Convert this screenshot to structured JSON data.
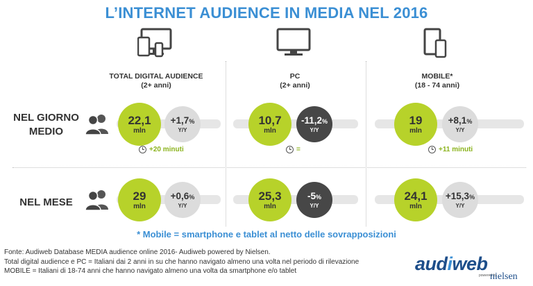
{
  "title": "L’INTERNET AUDIENCE IN MEDIA NEL 2016",
  "columns": [
    {
      "name": "TOTAL DIGITAL AUDIENCE",
      "sub": "(2+ anni)",
      "icon": "multi-device-icon"
    },
    {
      "name": "PC",
      "sub": "(2+ anni)",
      "icon": "monitor-icon"
    },
    {
      "name": "MOBILE*",
      "sub": "(18 - 74 anni)",
      "icon": "mobile-devices-icon"
    }
  ],
  "rows": [
    {
      "label_1": "NEL GIORNO",
      "label_2": "MEDIO",
      "cells": [
        {
          "value": "22,1",
          "unit": "mln",
          "change": "+1,7",
          "pct": "%",
          "yy": "Y/Y",
          "change_style": "grey",
          "time": "+20 minuti"
        },
        {
          "value": "10,7",
          "unit": "mln",
          "change": "-11,2",
          "pct": "%",
          "yy": "Y/Y",
          "change_style": "dark",
          "time": "="
        },
        {
          "value": "19",
          "unit": "mln",
          "change": "+8,1",
          "pct": "%",
          "yy": "Y/Y",
          "change_style": "grey",
          "time": "+11 minuti"
        }
      ]
    },
    {
      "label_1": "NEL MESE",
      "label_2": "",
      "cells": [
        {
          "value": "29",
          "unit": "mln",
          "change": "+0,6",
          "pct": "%",
          "yy": "Y/Y",
          "change_style": "grey"
        },
        {
          "value": "25,3",
          "unit": "mln",
          "change": "-5",
          "pct": "%",
          "yy": "Y/Y",
          "change_style": "dark"
        },
        {
          "value": "24,1",
          "unit": "mln",
          "change": "+15,3",
          "pct": "%",
          "yy": "Y/Y",
          "change_style": "grey"
        }
      ]
    }
  ],
  "footnote": "* Mobile = smartphone e tablet al netto delle sovrapposizioni",
  "source": [
    "Fonte: Audiweb Database MEDIA audience online 2016- Audiweb powered by Nielsen.",
    "Total digital audience e PC = Italiani dai 2 anni in su che hanno navigato almeno una volta nel periodo di rilevazione",
    "MOBILE = Italiani di 18-74 anni che hanno navigato almeno una volta da smartphone e/o tablet"
  ],
  "logo": {
    "main_a": "aud",
    "main_b": "i",
    "main_c": "web",
    "powered": "powered by",
    "partner": "nielsen"
  },
  "colors": {
    "title": "#3b8fd4",
    "green": "#b7d22a",
    "grey": "#dcdcdc",
    "dark": "#474747",
    "time": "#8bb31d"
  }
}
